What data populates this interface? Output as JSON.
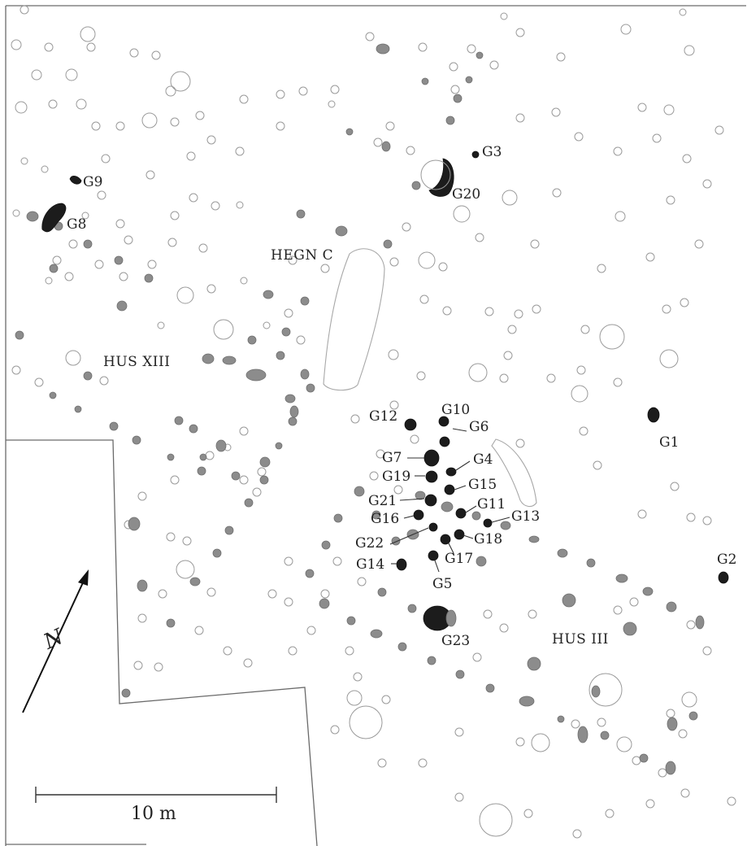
{
  "map": {
    "labels": {
      "hegn_c": "HEGN C",
      "hus_xiii": "HUS XIII",
      "hus_iii": "HUS III"
    },
    "graves": [
      "G1",
      "G2",
      "G3",
      "G4",
      "G5",
      "G6",
      "G7",
      "G8",
      "G9",
      "G10",
      "G11",
      "G12",
      "G13",
      "G14",
      "G15",
      "G16",
      "G17",
      "G18",
      "G19",
      "G20",
      "G21",
      "G22",
      "G23"
    ],
    "north_label": "N",
    "scale_bar": {
      "label": "10 m"
    },
    "colors": {
      "grave_fill": "#1c1c1c",
      "posthole_fill": "#8c8c8c",
      "feature_outline": "#9a9a9a",
      "excavation_edge": "#6a6a6a"
    }
  }
}
